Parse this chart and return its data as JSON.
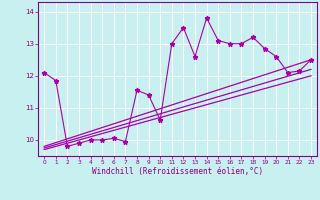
{
  "xlabel": "Windchill (Refroidissement éolien,°C)",
  "background_color": "#c8f0f0",
  "grid_color": "#ffffff",
  "line_color": "#aa00aa",
  "xlim": [
    -0.5,
    23.5
  ],
  "ylim": [
    9.5,
    14.3
  ],
  "yticks": [
    10,
    11,
    12,
    13,
    14
  ],
  "xticks": [
    0,
    1,
    2,
    3,
    4,
    5,
    6,
    7,
    8,
    9,
    10,
    11,
    12,
    13,
    14,
    15,
    16,
    17,
    18,
    19,
    20,
    21,
    22,
    23
  ],
  "series_x": [
    0,
    1,
    2,
    3,
    4,
    5,
    6,
    7,
    8,
    9,
    10,
    11,
    12,
    13,
    14,
    15,
    16,
    17,
    18,
    19,
    20,
    21,
    22,
    23
  ],
  "series_y": [
    12.1,
    11.85,
    9.8,
    9.9,
    10.0,
    10.0,
    10.05,
    9.95,
    11.55,
    11.4,
    10.62,
    13.0,
    13.5,
    12.6,
    13.8,
    13.1,
    13.0,
    13.0,
    13.2,
    12.85,
    12.6,
    12.1,
    12.15,
    12.5
  ],
  "line1_x": [
    0,
    23
  ],
  "line1_y": [
    9.8,
    12.5
  ],
  "line2_x": [
    0,
    23
  ],
  "line2_y": [
    9.75,
    12.2
  ],
  "line3_x": [
    0,
    23
  ],
  "line3_y": [
    9.7,
    12.0
  ]
}
